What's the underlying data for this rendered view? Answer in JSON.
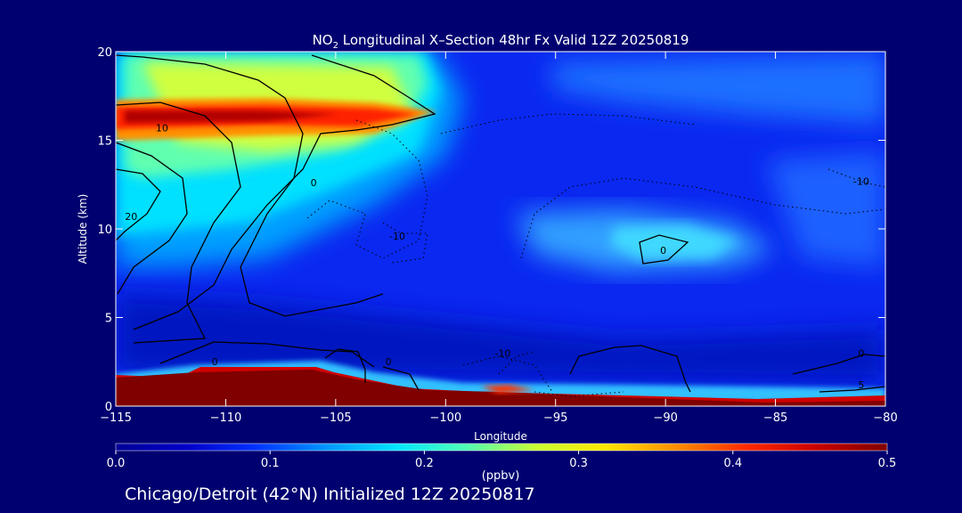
{
  "chart_data": {
    "type": "heatmap",
    "title_prefix": "NO",
    "title_subscript": "2",
    "title_suffix": " Longitudinal X–Section 48hr  Fx Valid 12Z 20250819",
    "xlabel": "Longitude",
    "ylabel": "Altitude (km)",
    "xlim": [
      -115,
      -80
    ],
    "ylim": [
      0,
      20
    ],
    "xticks": [
      -115,
      -110,
      -105,
      -100,
      -95,
      -90,
      -85,
      -80
    ],
    "xtick_labels": [
      "−115",
      "−110",
      "−105",
      "−100",
      "−95",
      "−90",
      "−85",
      "−80"
    ],
    "yticks": [
      0,
      5,
      10,
      15,
      20
    ],
    "ytick_labels": [
      "0",
      "5",
      "10",
      "15",
      "20"
    ],
    "colorbar": {
      "label": "(ppbv)",
      "range": [
        0,
        0.5
      ],
      "ticks": [
        0.0,
        0.1,
        0.2,
        0.3,
        0.4,
        0.5
      ],
      "tick_labels": [
        "0.0",
        "0.1",
        "0.2",
        "0.3",
        "0.4",
        "0.5"
      ],
      "colors": [
        "#000096",
        "#0000c8",
        "#0032ff",
        "#0096ff",
        "#00e6ff",
        "#50ffb4",
        "#c8ff32",
        "#ffe600",
        "#ff8c00",
        "#ff2800",
        "#c80000",
        "#800000"
      ]
    },
    "field_features": [
      {
        "kind": "high_no2_band",
        "x": [
          -115,
          -100
        ],
        "y": [
          16,
          17.2
        ],
        "value": 0.45
      },
      {
        "kind": "upper_plume",
        "x": [
          -115,
          -101
        ],
        "y": [
          13,
          20
        ],
        "value": 0.22
      },
      {
        "kind": "mid_enhancement",
        "x": [
          -93,
          -86
        ],
        "y": [
          8,
          10
        ],
        "value": 0.15
      },
      {
        "kind": "surface_layer",
        "x": [
          -115,
          -80
        ],
        "y": [
          0.5,
          2
        ],
        "value": 0.5
      }
    ],
    "contour_labels": [
      {
        "text": "10",
        "x": -112.9,
        "y": 15.5
      },
      {
        "text": "20",
        "x": -114.3,
        "y": 10.5
      },
      {
        "text": "0",
        "x": -106,
        "y": 12.4
      },
      {
        "text": "-10",
        "x": -102.2,
        "y": 9.4
      },
      {
        "text": "0",
        "x": -90.1,
        "y": 8.6
      },
      {
        "text": "-10",
        "x": -81.1,
        "y": 12.5
      },
      {
        "text": "0",
        "x": -110.5,
        "y": 2.3
      },
      {
        "text": "0",
        "x": -102.6,
        "y": 2.3
      },
      {
        "text": "-10",
        "x": -97.4,
        "y": 2.8
      },
      {
        "text": "0",
        "x": -81.1,
        "y": 2.8
      },
      {
        "text": "5",
        "x": -81.1,
        "y": 1.0
      }
    ]
  },
  "footer": "Chicago/Detroit (42°N) Initialized 12Z 20250817"
}
